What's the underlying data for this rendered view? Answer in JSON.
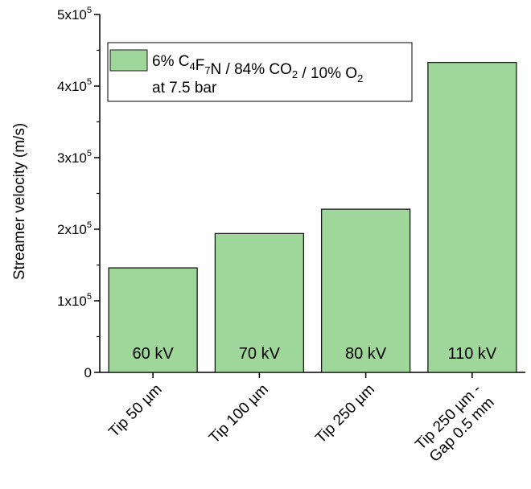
{
  "chart_data": {
    "type": "bar",
    "categories": [
      "Tip 50 µm",
      "Tip 100 µm",
      "Tip 250 µm",
      "Tip 250 µm - Gap 0.5 mm"
    ],
    "category_lines": [
      [
        "Tip 50 µm"
      ],
      [
        "Tip 100 µm"
      ],
      [
        "Tip 250 µm"
      ],
      [
        "Tip 250 µm -",
        "Gap 0.5 mm"
      ]
    ],
    "values": [
      146000,
      194000,
      228000,
      433000
    ],
    "bar_labels": [
      "60 kV",
      "70 kV",
      "80 kV",
      "110 kV"
    ],
    "ylabel": "Streamer velocity (m/s)",
    "xlabel": "",
    "ylim": [
      0,
      500000
    ],
    "y_ticks": [
      {
        "value": 0,
        "mantissa": "0",
        "exp": ""
      },
      {
        "value": 100000,
        "mantissa": "1x10",
        "exp": "5"
      },
      {
        "value": 200000,
        "mantissa": "2x10",
        "exp": "5"
      },
      {
        "value": 300000,
        "mantissa": "3x10",
        "exp": "5"
      },
      {
        "value": 400000,
        "mantissa": "4x10",
        "exp": "5"
      },
      {
        "value": 500000,
        "mantissa": "5x10",
        "exp": "5"
      }
    ],
    "legend": {
      "position": "top-left",
      "line1": [
        {
          "t": "6% C",
          "sub": false
        },
        {
          "t": "4",
          "sub": true
        },
        {
          "t": "F",
          "sub": false
        },
        {
          "t": "7",
          "sub": true
        },
        {
          "t": "N / 84% CO",
          "sub": false
        },
        {
          "t": "2",
          "sub": true
        },
        {
          "t": " / 10% O",
          "sub": false
        },
        {
          "t": "2",
          "sub": true
        }
      ],
      "line2": "at 7.5 bar"
    },
    "colors": {
      "bar_fill": "#9fd69a",
      "bar_stroke": "#1a1a1a"
    },
    "grid": false
  }
}
